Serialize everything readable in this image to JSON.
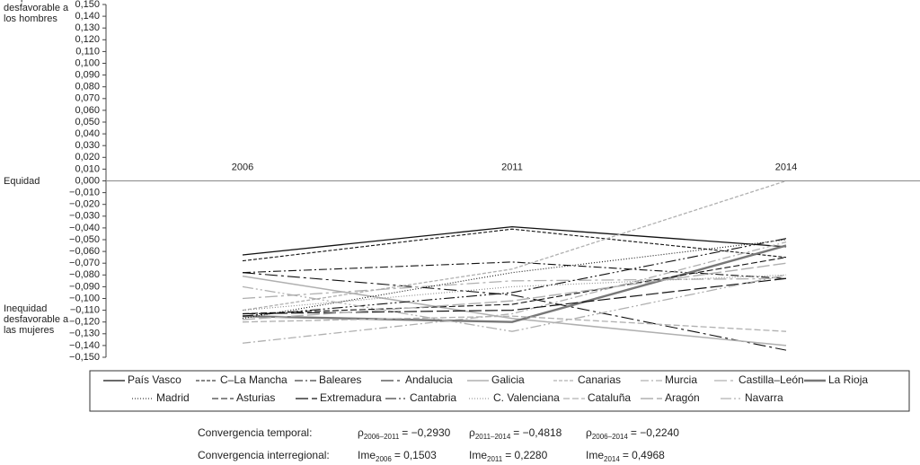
{
  "chart_data": {
    "type": "line",
    "categories": [
      "2006",
      "2011",
      "2014"
    ],
    "ylim": [
      -0.15,
      0.15
    ],
    "yticks": [
      {
        "value": 0.15,
        "label": "0,150"
      },
      {
        "value": 0.14,
        "label": "0,140"
      },
      {
        "value": 0.13,
        "label": "0,130"
      },
      {
        "value": 0.12,
        "label": "0,120"
      },
      {
        "value": 0.11,
        "label": "0,110"
      },
      {
        "value": 0.1,
        "label": "0,100"
      },
      {
        "value": 0.09,
        "label": "0,090"
      },
      {
        "value": 0.08,
        "label": "0,080"
      },
      {
        "value": 0.07,
        "label": "0,070"
      },
      {
        "value": 0.06,
        "label": "0,060"
      },
      {
        "value": 0.05,
        "label": "0,050"
      },
      {
        "value": 0.04,
        "label": "0,040"
      },
      {
        "value": 0.03,
        "label": "0,030"
      },
      {
        "value": 0.02,
        "label": "0,020"
      },
      {
        "value": 0.01,
        "label": "0,010"
      },
      {
        "value": 0,
        "label": "0,000"
      },
      {
        "value": -0.01,
        "label": "−0,010"
      },
      {
        "value": -0.02,
        "label": "−0,020"
      },
      {
        "value": -0.03,
        "label": "−0,030"
      },
      {
        "value": -0.04,
        "label": "−0,040"
      },
      {
        "value": -0.05,
        "label": "−0,050"
      },
      {
        "value": -0.06,
        "label": "−0,060"
      },
      {
        "value": -0.07,
        "label": "−0,070"
      },
      {
        "value": -0.08,
        "label": "−0,080"
      },
      {
        "value": -0.09,
        "label": "−0,090"
      },
      {
        "value": -0.1,
        "label": "−0,100"
      },
      {
        "value": -0.11,
        "label": "−0,110"
      },
      {
        "value": -0.12,
        "label": "−0,120"
      },
      {
        "value": -0.13,
        "label": "−0,130"
      },
      {
        "value": -0.14,
        "label": "−0,140"
      },
      {
        "value": -0.15,
        "label": "−0,150"
      }
    ],
    "annotations": [
      {
        "text": "Inequidad desfavorable a los hombres",
        "y": 0.147
      },
      {
        "text": "Equidad",
        "y": 0
      },
      {
        "text": "Inequidad desfavorable a las mujeres",
        "y": -0.118
      }
    ],
    "series": [
      {
        "name": "País Vasco",
        "color": "#111111",
        "dash": "",
        "width": 1.3,
        "values": [
          -0.063,
          -0.039,
          -0.056
        ]
      },
      {
        "name": "C–La Mancha",
        "color": "#111111",
        "dash": "4,2",
        "width": 1.1,
        "values": [
          -0.068,
          -0.041,
          -0.065
        ]
      },
      {
        "name": "Baleares",
        "color": "#111111",
        "dash": "9,3,2,3",
        "width": 1.1,
        "values": [
          -0.078,
          -0.069,
          -0.083
        ]
      },
      {
        "name": "Andalucia",
        "color": "#111111",
        "dash": "14,4,3,4",
        "width": 1.1,
        "values": [
          -0.078,
          -0.097,
          -0.144
        ]
      },
      {
        "name": "Galicia",
        "color": "#b0b0b0",
        "dash": "",
        "width": 1.5,
        "values": [
          -0.081,
          -0.117,
          -0.14
        ]
      },
      {
        "name": "Canarias",
        "color": "#b0b0b0",
        "dash": "4,2",
        "width": 1.3,
        "values": [
          -0.11,
          -0.075,
          0
        ]
      },
      {
        "name": "Murcia",
        "color": "#b0b0b0",
        "dash": "9,3,2,3",
        "width": 1.3,
        "values": [
          -0.138,
          -0.113,
          -0.052
        ]
      },
      {
        "name": "Castilla–León",
        "color": "#b0b0b0",
        "dash": "14,4,3,4",
        "width": 1.3,
        "values": [
          -0.1,
          -0.085,
          -0.083
        ]
      },
      {
        "name": "La Rioja",
        "color": "#777777",
        "dash": "",
        "width": 2.4,
        "values": [
          -0.115,
          -0.12,
          -0.055
        ]
      },
      {
        "name": "Madrid",
        "color": "#111111",
        "dash": "1,2",
        "width": 1.1,
        "values": [
          -0.117,
          -0.078,
          -0.05
        ]
      },
      {
        "name": "Asturias",
        "color": "#111111",
        "dash": "7,3",
        "width": 1.1,
        "values": [
          -0.113,
          -0.105,
          -0.065
        ]
      },
      {
        "name": "Extremadura",
        "color": "#111111",
        "dash": "14,4",
        "width": 1.2,
        "values": [
          -0.113,
          -0.11,
          -0.083
        ]
      },
      {
        "name": "Cantabria",
        "color": "#111111",
        "dash": "12,3,2,3,2,3",
        "width": 1.1,
        "values": [
          -0.115,
          -0.095,
          -0.049
        ]
      },
      {
        "name": "C. Valenciana",
        "color": "#888888",
        "dash": "1,2",
        "width": 1.1,
        "values": [
          -0.11,
          -0.09,
          -0.08
        ]
      },
      {
        "name": "Cataluña",
        "color": "#b0b0b0",
        "dash": "7,3",
        "width": 1.3,
        "values": [
          -0.12,
          -0.115,
          -0.128
        ]
      },
      {
        "name": "Aragón",
        "color": "#b0b0b0",
        "dash": "14,4",
        "width": 1.4,
        "values": [
          -0.118,
          -0.102,
          -0.07
        ]
      },
      {
        "name": "Navarra",
        "color": "#b0b0b0",
        "dash": "12,3,2,3,2,3",
        "width": 1.3,
        "values": [
          -0.09,
          -0.128,
          -0.08
        ]
      }
    ]
  },
  "stats": [
    {
      "label": "Convergencia temporal:",
      "items": [
        {
          "symbol": "ρ",
          "sub": "2006–2011",
          "value": "= −0,2930"
        },
        {
          "symbol": "ρ",
          "sub": "2011–2014",
          "value": "= −0,4818"
        },
        {
          "symbol": "ρ",
          "sub": "2006–2014",
          "value": "= −0,2240"
        }
      ]
    },
    {
      "label": "Convergencia interregional:",
      "items": [
        {
          "symbol": "Ime",
          "sub": "2006",
          "value": "= 0,1503"
        },
        {
          "symbol": "Ime",
          "sub": "2011",
          "value": "= 0,2280"
        },
        {
          "symbol": "Ime",
          "sub": "2014",
          "value": "= 0,4968"
        }
      ]
    }
  ]
}
